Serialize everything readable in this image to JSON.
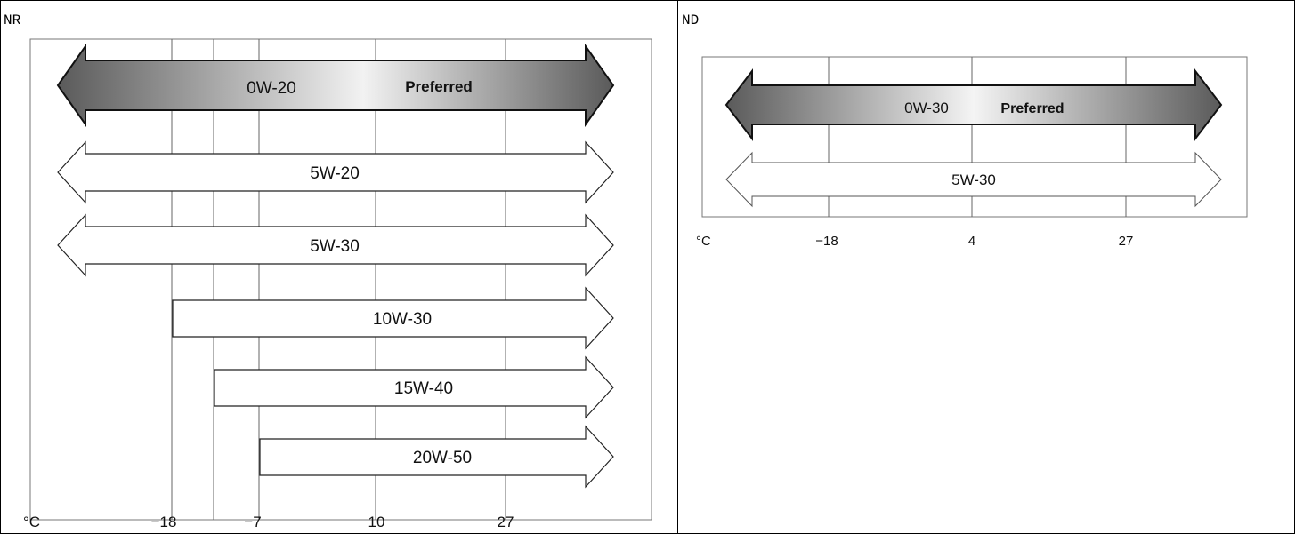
{
  "cells": [
    {
      "id": "nr",
      "label": "NR",
      "unit": "°C",
      "ticks": [
        "−18",
        "−7",
        "10",
        "27"
      ],
      "grades": [
        {
          "name": "0W-20",
          "note": "Preferred",
          "direction": "both",
          "preferred": true
        },
        {
          "name": "5W-20",
          "note": "",
          "direction": "both",
          "preferred": false
        },
        {
          "name": "5W-30",
          "note": "",
          "direction": "both",
          "preferred": false
        },
        {
          "name": "10W-30",
          "note": "",
          "direction": "right",
          "from_tick": "−18",
          "preferred": false
        },
        {
          "name": "15W-40",
          "note": "",
          "direction": "right",
          "from_tick": "−12",
          "preferred": false
        },
        {
          "name": "20W-50",
          "note": "",
          "direction": "right",
          "from_tick": "−7",
          "preferred": false
        }
      ]
    },
    {
      "id": "nd",
      "label": "ND",
      "unit": "°C",
      "ticks": [
        "−18",
        "4",
        "27"
      ],
      "grades": [
        {
          "name": "0W-30",
          "note": "Preferred",
          "direction": "both",
          "preferred": true
        },
        {
          "name": "5W-30",
          "note": "",
          "direction": "both",
          "preferred": false
        }
      ]
    }
  ]
}
